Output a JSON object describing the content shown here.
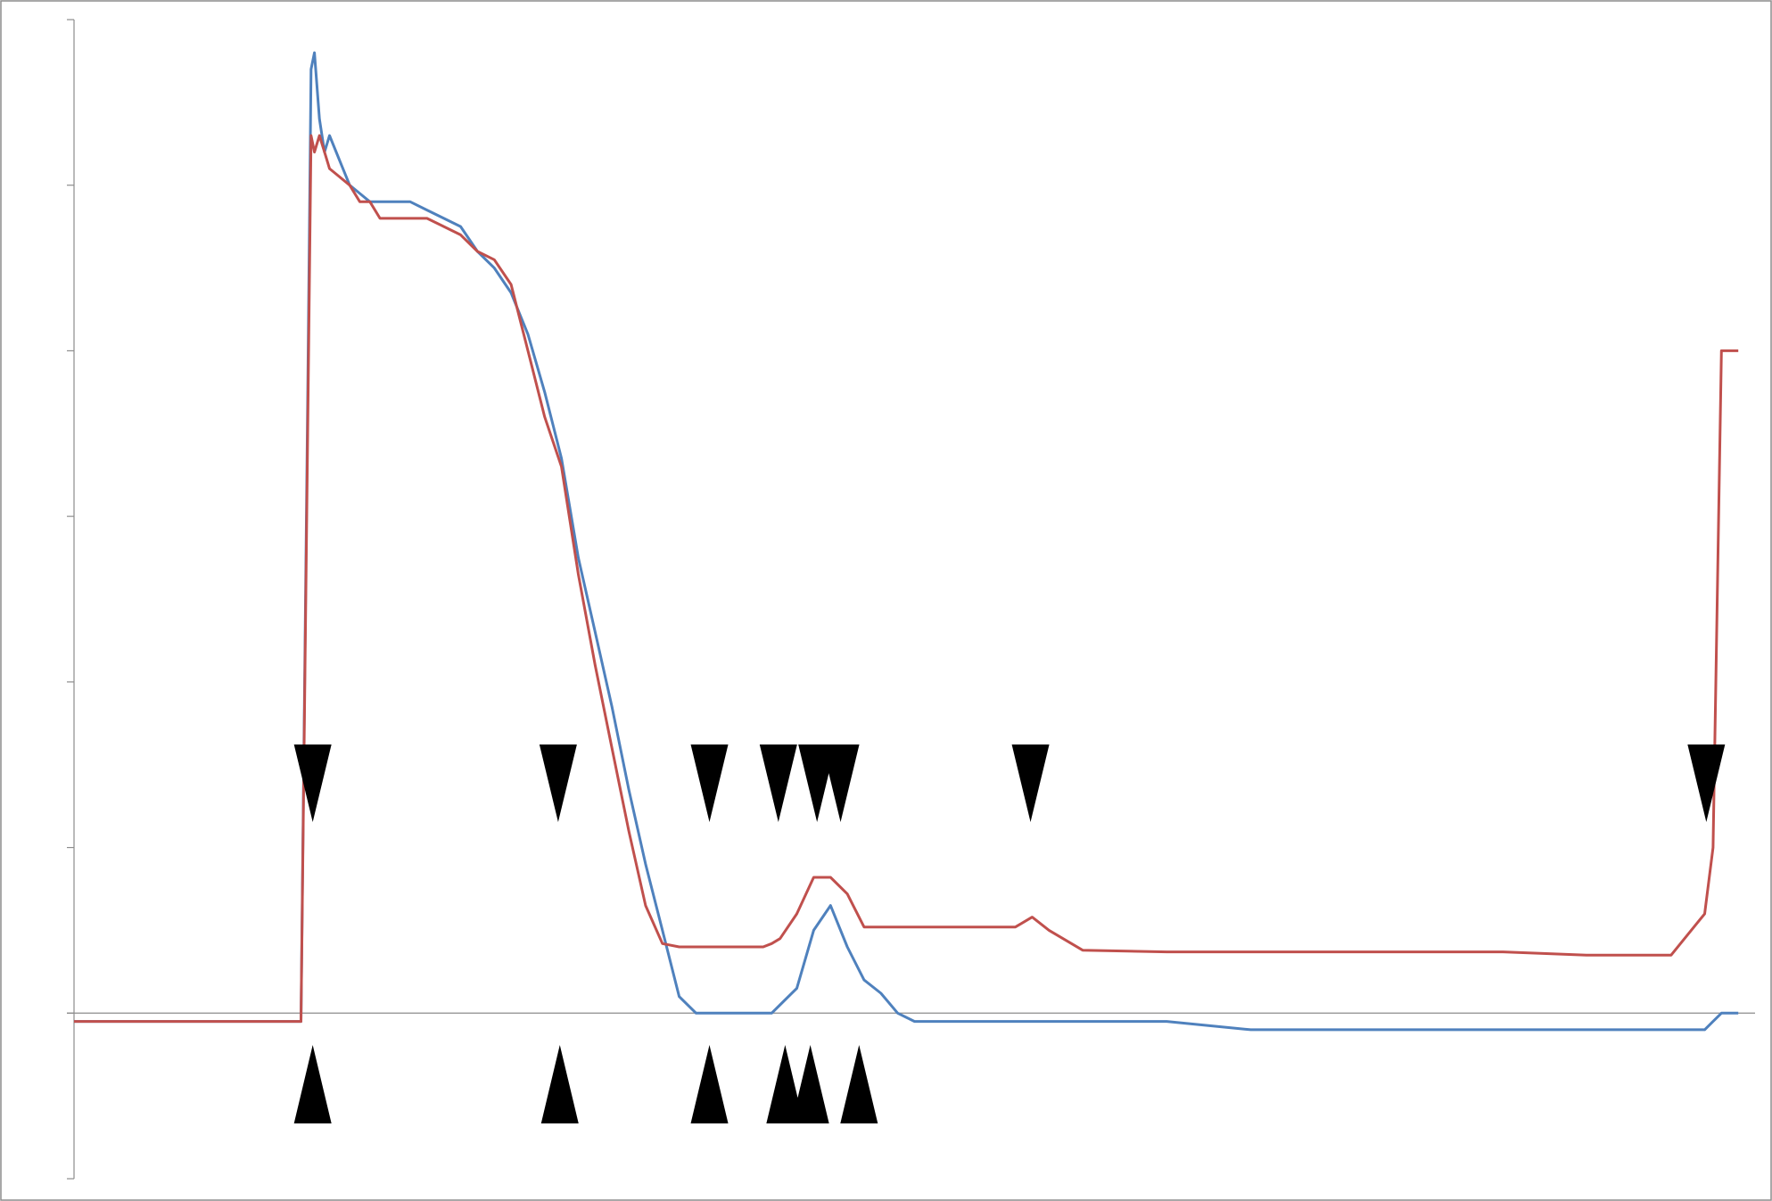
{
  "colors": {
    "background": "#ffffff",
    "frame": "#8c8c8c",
    "axis": "#8c8c8c",
    "series_blue": "#4f81bd",
    "series_red": "#c0504d",
    "markers": "#000000"
  },
  "chart_data": {
    "type": "line",
    "title": "",
    "xlabel": "",
    "ylabel": "",
    "x_range": [
      0,
      100
    ],
    "ylim": [
      -1,
      6
    ],
    "y_ticks": [
      -1,
      0,
      1,
      2,
      3,
      4,
      5,
      6
    ],
    "tick_labels_visible": false,
    "grid": false,
    "legend": "none",
    "series": [
      {
        "color": "#4f81bd",
        "x": [
          0,
          2,
          4,
          6,
          8,
          10,
          12,
          13.5,
          13.9,
          14.1,
          14.3,
          14.6,
          14.9,
          15.2,
          15.8,
          16.4,
          17,
          17.6,
          18.2,
          19,
          20,
          21,
          22,
          23,
          24,
          25,
          26,
          27,
          28,
          29,
          30,
          31,
          32,
          33,
          34,
          35,
          36,
          37,
          38,
          39,
          40,
          41,
          41.5,
          42,
          43,
          44,
          45,
          46,
          47,
          48,
          49,
          50,
          51,
          52,
          53,
          54,
          55,
          56,
          57,
          58,
          60,
          65,
          70,
          75,
          80,
          85,
          90,
          95,
          97,
          97.5,
          98,
          99
        ],
        "values": [
          -0.05,
          -0.05,
          -0.05,
          -0.05,
          -0.05,
          -0.05,
          -0.05,
          -0.05,
          3.7,
          5.7,
          5.8,
          5.4,
          5.2,
          5.3,
          5.15,
          5.0,
          4.95,
          4.9,
          4.9,
          4.9,
          4.9,
          4.85,
          4.8,
          4.75,
          4.6,
          4.5,
          4.35,
          4.1,
          3.75,
          3.35,
          2.75,
          2.3,
          1.85,
          1.35,
          0.9,
          0.5,
          0.1,
          0.0,
          0.0,
          0.0,
          0.0,
          0.0,
          0.0,
          0.05,
          0.15,
          0.5,
          0.65,
          0.4,
          0.2,
          0.12,
          0.0,
          -0.05,
          -0.05,
          -0.05,
          -0.05,
          -0.05,
          -0.05,
          -0.05,
          -0.05,
          -0.05,
          -0.05,
          -0.05,
          -0.1,
          -0.1,
          -0.1,
          -0.1,
          -0.1,
          -0.1,
          -0.1,
          -0.05,
          0.0,
          0.0
        ]
      },
      {
        "color": "#c0504d",
        "x": [
          0,
          2,
          4,
          6,
          8,
          10,
          12,
          13.5,
          13.9,
          14.1,
          14.3,
          14.6,
          14.9,
          15.2,
          15.8,
          16.4,
          17,
          17.6,
          18.2,
          19,
          20,
          21,
          22,
          23,
          24,
          25,
          26,
          27,
          28,
          29,
          30,
          31,
          32,
          33,
          34,
          35,
          36,
          37,
          38,
          39,
          40,
          41,
          41.5,
          42,
          43,
          44,
          45,
          46,
          47,
          48,
          49,
          50,
          51,
          52,
          53,
          54,
          55,
          56,
          57,
          58,
          60,
          65,
          70,
          75,
          80,
          85,
          90,
          95,
          97,
          97.5,
          98,
          99
        ],
        "values": [
          -0.05,
          -0.05,
          -0.05,
          -0.05,
          -0.05,
          -0.05,
          -0.05,
          -0.05,
          3.5,
          5.3,
          5.2,
          5.3,
          5.2,
          5.1,
          5.05,
          5.0,
          4.9,
          4.9,
          4.8,
          4.8,
          4.8,
          4.8,
          4.75,
          4.7,
          4.6,
          4.55,
          4.4,
          4.0,
          3.6,
          3.3,
          2.65,
          2.1,
          1.6,
          1.1,
          0.65,
          0.42,
          0.4,
          0.4,
          0.4,
          0.4,
          0.4,
          0.4,
          0.42,
          0.45,
          0.6,
          0.82,
          0.82,
          0.72,
          0.52,
          0.52,
          0.52,
          0.52,
          0.52,
          0.52,
          0.52,
          0.52,
          0.52,
          0.52,
          0.58,
          0.5,
          0.38,
          0.37,
          0.37,
          0.37,
          0.37,
          0.37,
          0.35,
          0.35,
          0.6,
          1.0,
          4.0,
          4.0
        ]
      }
    ],
    "markers_top_x": [
      14.2,
      28.8,
      37.8,
      41.9,
      44.2,
      45.6,
      56.9,
      97.1
    ],
    "markers_bottom_x": [
      14.2,
      28.9,
      37.8,
      42.3,
      43.8,
      46.7
    ]
  }
}
